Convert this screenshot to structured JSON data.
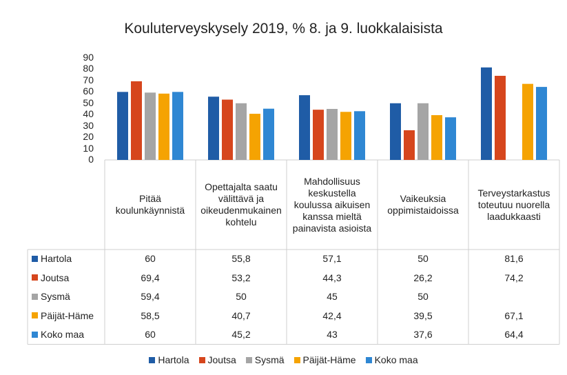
{
  "chart_data": {
    "type": "bar",
    "title": "Kouluterveyskysely 2019, % 8. ja 9. luokkalaisista",
    "categories": [
      "Pitää koulunkäynnistä",
      "Opettajalta saatu välittävä ja oikeudenmukainen kohtelu",
      "Mahdollisuus keskustella koulussa aikuisen kanssa mieltä painavista asioista",
      "Vaikeuksia oppimistaidoissa",
      "Terveystarkastus toteutuu nuorella laadukkaasti"
    ],
    "series": [
      {
        "name": "Hartola",
        "color": "#1f5ca6",
        "values": [
          60,
          55.8,
          57.1,
          50,
          81.6
        ],
        "value_labels": [
          "60",
          "55,8",
          "57,1",
          "50",
          "81,6"
        ]
      },
      {
        "name": "Joutsa",
        "color": "#d6461d",
        "values": [
          69.4,
          53.2,
          44.3,
          26.2,
          74.2
        ],
        "value_labels": [
          "69,4",
          "53,2",
          "44,3",
          "26,2",
          "74,2"
        ]
      },
      {
        "name": "Sysmä",
        "color": "#a5a5a5",
        "values": [
          59.4,
          50,
          45,
          50,
          null
        ],
        "value_labels": [
          "59,4",
          "50",
          "45",
          "50",
          null
        ]
      },
      {
        "name": "Päijät-Häme",
        "color": "#f5a302",
        "values": [
          58.5,
          40.7,
          42.4,
          39.5,
          67.1
        ],
        "value_labels": [
          "58,5",
          "40,7",
          "42,4",
          "39,5",
          "67,1"
        ]
      },
      {
        "name": "Koko maa",
        "color": "#2f87d3",
        "values": [
          60,
          45.2,
          43,
          37.6,
          64.4
        ],
        "value_labels": [
          "60",
          "45,2",
          "43",
          "37,6",
          "64,4"
        ]
      }
    ],
    "ylim": [
      0,
      90
    ],
    "yticks": [
      0,
      10,
      20,
      30,
      40,
      50,
      60,
      70,
      80,
      90
    ],
    "grid": false,
    "legend": "bottom"
  }
}
